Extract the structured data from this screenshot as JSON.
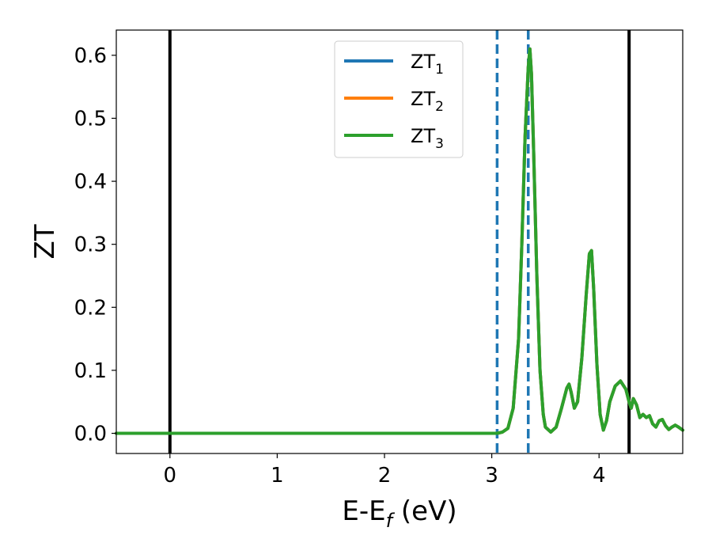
{
  "chart_data": {
    "type": "line",
    "xlabel": "E-E",
    "xlabel_sub": "f",
    "xlabel_unit": " (eV)",
    "ylabel": "ZT",
    "xlim": [
      -0.5,
      4.78
    ],
    "ylim": [
      -0.032,
      0.64
    ],
    "xticks": [
      0,
      1,
      2,
      3,
      4
    ],
    "xtick_labels": [
      "0",
      "1",
      "2",
      "3",
      "4"
    ],
    "yticks": [
      0.0,
      0.1,
      0.2,
      0.3,
      0.4,
      0.5,
      0.6
    ],
    "ytick_labels": [
      "0.0",
      "0.1",
      "0.2",
      "0.3",
      "0.4",
      "0.5",
      "0.6"
    ],
    "grid": false,
    "legend_position": "top-center",
    "series": [
      {
        "name": "ZT",
        "sub": "1",
        "color": "#1f77b4"
      },
      {
        "name": "ZT",
        "sub": "2",
        "color": "#ff7f0e"
      },
      {
        "name": "ZT",
        "sub": "3",
        "color": "#2ca02c"
      }
    ],
    "curve": {
      "note_shared": "all three series overlap; curve shows common values",
      "x": [
        -0.5,
        3.0,
        3.05,
        3.1,
        3.15,
        3.2,
        3.25,
        3.28,
        3.31,
        3.34,
        3.355,
        3.37,
        3.39,
        3.42,
        3.45,
        3.48,
        3.5,
        3.55,
        3.6,
        3.65,
        3.7,
        3.72,
        3.74,
        3.77,
        3.8,
        3.84,
        3.88,
        3.91,
        3.93,
        3.95,
        3.98,
        4.01,
        4.04,
        4.07,
        4.1,
        4.15,
        4.2,
        4.25,
        4.28,
        4.3,
        4.32,
        4.35,
        4.38,
        4.41,
        4.44,
        4.47,
        4.5,
        4.53,
        4.56,
        4.59,
        4.62,
        4.65,
        4.68,
        4.71,
        4.74,
        4.78
      ],
      "y": [
        0.0,
        0.0,
        0.0,
        0.002,
        0.008,
        0.04,
        0.15,
        0.3,
        0.47,
        0.58,
        0.61,
        0.57,
        0.45,
        0.25,
        0.1,
        0.03,
        0.01,
        0.002,
        0.01,
        0.04,
        0.072,
        0.078,
        0.065,
        0.04,
        0.05,
        0.12,
        0.22,
        0.285,
        0.29,
        0.23,
        0.11,
        0.03,
        0.005,
        0.02,
        0.05,
        0.075,
        0.083,
        0.07,
        0.05,
        0.04,
        0.055,
        0.045,
        0.025,
        0.03,
        0.025,
        0.028,
        0.015,
        0.01,
        0.02,
        0.022,
        0.012,
        0.006,
        0.01,
        0.013,
        0.01,
        0.005
      ]
    },
    "vertical_lines": [
      {
        "x": 0.0,
        "style": "solid",
        "color": "#000000"
      },
      {
        "x": 4.28,
        "style": "solid",
        "color": "#000000"
      },
      {
        "x": 3.05,
        "style": "dashed",
        "color": "#1f77b4"
      },
      {
        "x": 3.34,
        "style": "dashed",
        "color": "#1f77b4"
      }
    ]
  }
}
